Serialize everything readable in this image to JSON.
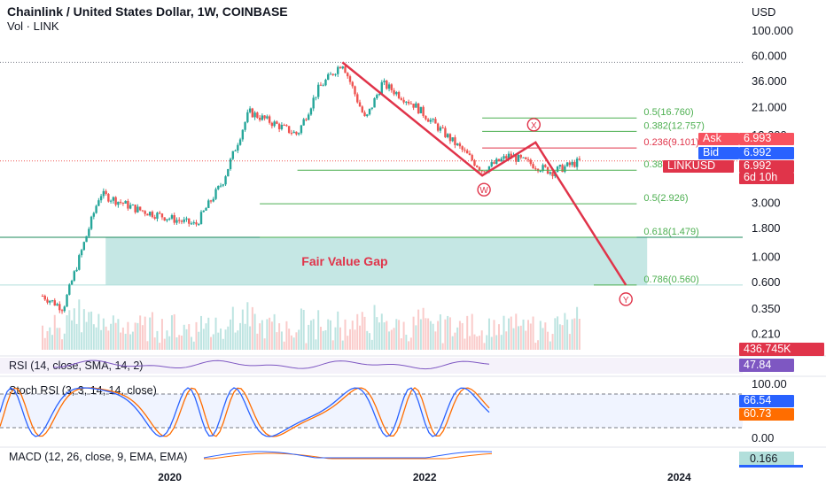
{
  "header": {
    "title": "Chainlink / United States Dollar, 1W, COINBASE",
    "vol_label": "Vol · LINK",
    "currency": "USD"
  },
  "price_axis": {
    "ticks": [
      "100.000",
      "60.000",
      "36.000",
      "21.000",
      "12.000",
      "6.000",
      "3.000",
      "1.800",
      "1.000",
      "0.600",
      "0.350",
      "0.210"
    ]
  },
  "time_axis": {
    "labels": [
      "2020",
      "2022",
      "2024"
    ]
  },
  "quote": {
    "ask_label": "Ask",
    "ask": "6.993",
    "bid_label": "Bid",
    "bid": "6.992",
    "symbol": "LINKUSD",
    "last": "6.992",
    "countdown": "6d 10h",
    "volume": "436.745K"
  },
  "fib_levels": [
    {
      "label": "0.5(16.760)",
      "price": 16.76
    },
    {
      "label": "0.382(12.757)",
      "price": 12.757
    },
    {
      "label": "0.236(9.101)",
      "price": 9.101
    },
    {
      "label": "0.382(5.790)",
      "price": 5.79
    },
    {
      "label": "0.5(2.926)",
      "price": 2.926
    },
    {
      "label": "0.618(1.479)",
      "price": 1.479
    },
    {
      "label": "0.786(0.560)",
      "price": 0.56
    }
  ],
  "annotations": {
    "fvg": "Fair Value Gap",
    "x": "X",
    "w": "W",
    "y": "Y"
  },
  "indicators": {
    "rsi": {
      "label": "RSI (14, close, SMA, 14, 2)",
      "value": "47.84"
    },
    "stoch": {
      "label": "Stoch RSI (3, 3, 14, 14, close)",
      "k": "66.54",
      "d": "60.73",
      "ticks": [
        "100.00",
        "0.00"
      ]
    },
    "macd": {
      "label": "MACD (12, 26, close, 9, EMA, EMA)",
      "value": "0.166"
    }
  },
  "colors": {
    "up": "#26a69a",
    "down": "#ef5350",
    "pattern": "#e0344a",
    "fib": "#4caf50",
    "fvg": "#b2dfdb",
    "rsi_box": "#7e57c2",
    "ask": "#f7525f",
    "bid": "#2962ff",
    "stoch_d": "#ff6d00"
  },
  "chart_data": {
    "type": "candlestick",
    "title": "Chainlink / United States Dollar, 1W, COINBASE",
    "y_scale": "log",
    "ylim": [
      0.17,
      135
    ],
    "x_labels": [
      "2020",
      "2022",
      "2024"
    ],
    "series": [
      {
        "name": "LINKUSD",
        "x": [
          "2019-01-01",
          "2019-03-01",
          "2019-06-15",
          "2019-10-01",
          "2020-03-15",
          "2020-06-01",
          "2020-08-15",
          "2021-01-01",
          "2021-03-01",
          "2021-05-10",
          "2021-07-15",
          "2021-09-01",
          "2021-12-01",
          "2022-05-01",
          "2022-06-15",
          "2022-09-01",
          "2023-01-01",
          "2023-03-25"
        ],
        "close": [
          0.45,
          0.35,
          3.6,
          2.6,
          1.9,
          4.6,
          19.0,
          12.0,
          30.0,
          52.0,
          16.0,
          34.0,
          22.0,
          8.0,
          5.8,
          7.8,
          5.6,
          6.992
        ]
      },
      {
        "name": "Elliott projection",
        "x": [
          "2021-05-10",
          "2022-06-15",
          "2022-11-15",
          "2023-08-01"
        ],
        "close": [
          52.0,
          5.2,
          10.2,
          0.56
        ]
      }
    ]
  }
}
